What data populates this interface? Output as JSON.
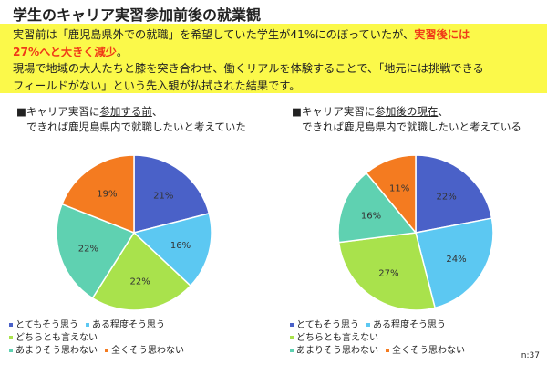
{
  "title": "学生のキャリア実習参加前後の就業観",
  "summary": {
    "line1": "実習前は「鹿児島県外での就職」を希望していた学生が41%にのぼっていたが、",
    "line1_red": "実習後には",
    "line2_red": "27%へと大きく減少",
    "line2_end": "。",
    "line3": "現場で地域の大人たちと膝を突き合わせ、働くリアルを体験することで、「地元には挑戦できる",
    "line4": "フィールドがない」という先入観が払拭された結果です。"
  },
  "chart_data": [
    {
      "type": "pie",
      "title_prefix": "■キャリア実習に",
      "title_underlined": "参加する前",
      "title_suffix": "、",
      "title_line2": "できれば鹿児島県内で就職したいと考えていた",
      "categories": [
        "とてもそう思う",
        "ある程度そう思う",
        "どちらとも言えない",
        "あまりそう思わない",
        "全くそう思わない"
      ],
      "values": [
        21,
        16,
        22,
        22,
        19
      ],
      "labels": [
        "21%",
        "16%",
        "22%",
        "22%",
        "19%"
      ]
    },
    {
      "type": "pie",
      "title_prefix": "■キャリア実習に",
      "title_underlined": "参加後の現在",
      "title_suffix": "、",
      "title_line2": "できれば鹿児島県内で就職したいと考えている",
      "categories": [
        "とてもそう思う",
        "ある程度そう思う",
        "どちらとも言えない",
        "あまりそう思わない",
        "全くそう思わない"
      ],
      "values": [
        22,
        24,
        27,
        16,
        11
      ],
      "labels": [
        "22%",
        "24%",
        "27%",
        "16%",
        "11%"
      ]
    }
  ],
  "colors": [
    "#4a61c8",
    "#5cc8f2",
    "#a9e24c",
    "#5fd1b1",
    "#f47b20"
  ],
  "note": "n:37"
}
